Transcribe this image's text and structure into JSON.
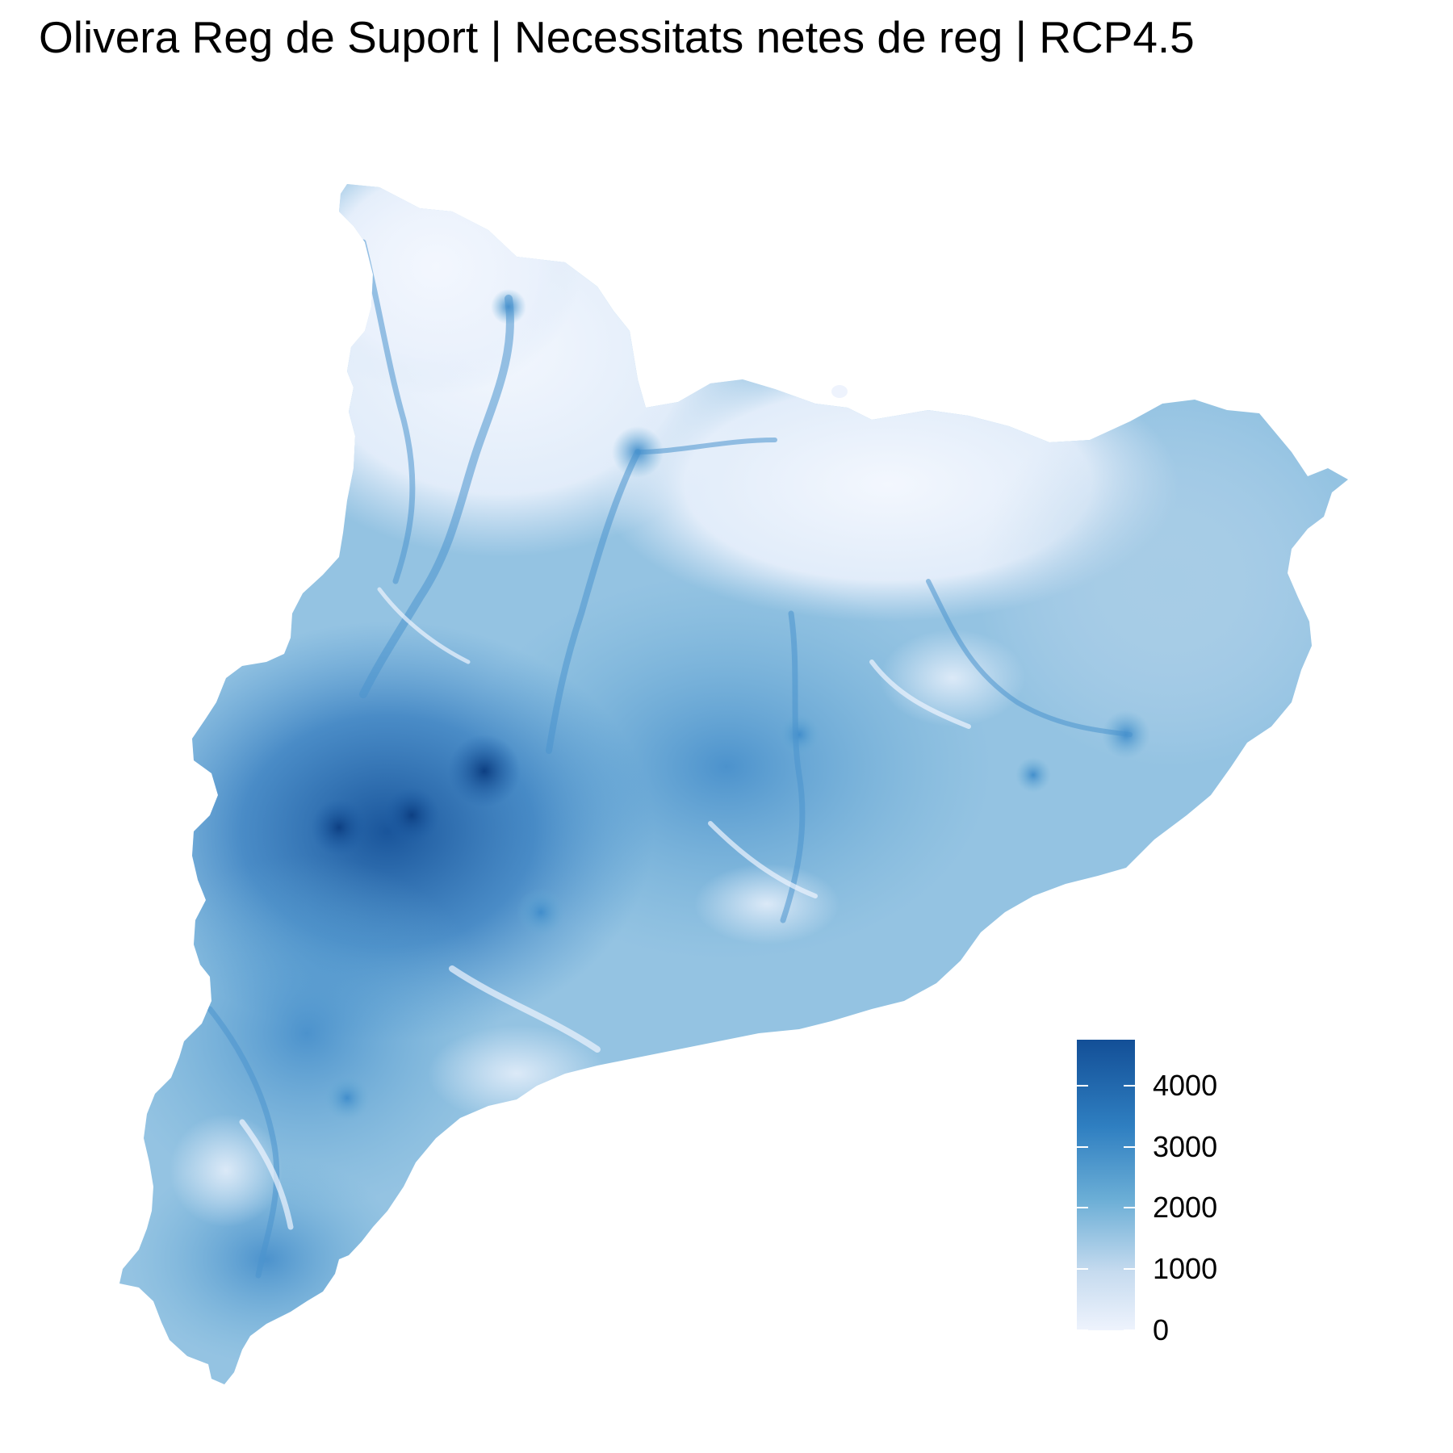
{
  "title": "Olivera Reg de Suport | Necessitats netes de reg | RCP4.5",
  "legend": {
    "max_value": 4750,
    "min_value": 0,
    "ticks": [
      {
        "value": 4000,
        "label": "4000"
      },
      {
        "value": 3000,
        "label": "3000"
      },
      {
        "value": 2000,
        "label": "2000"
      },
      {
        "value": 1000,
        "label": "1000"
      },
      {
        "value": 0,
        "label": "0"
      }
    ]
  },
  "colors": {
    "low": "#eef3fd",
    "mid_low": "#c6dbef",
    "mid": "#6baed6",
    "mid_high": "#2f7fc1",
    "high": "#134f97",
    "background": "#ffffff"
  }
}
